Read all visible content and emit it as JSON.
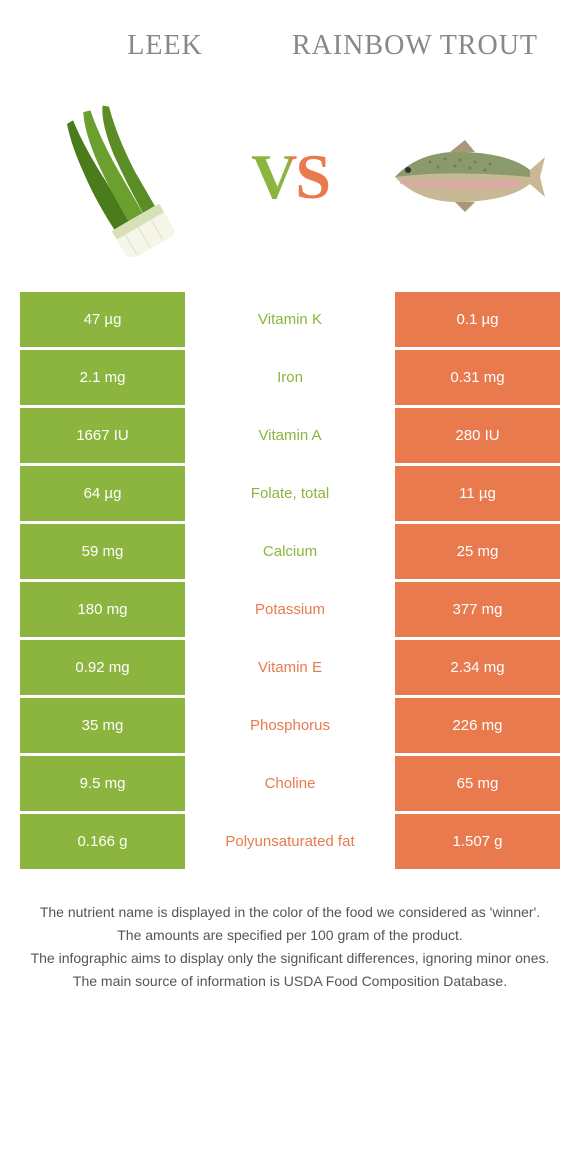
{
  "header": {
    "left_title": "Leek",
    "right_title": "Rainbow trout",
    "vs": "VS"
  },
  "colors": {
    "leek": "#8cb53f",
    "trout": "#e87a4e",
    "title": "#888888",
    "foot": "#555555"
  },
  "rows": [
    {
      "left": "47 µg",
      "label": "Vitamin K",
      "right": "0.1 µg",
      "winner": "leek"
    },
    {
      "left": "2.1 mg",
      "label": "Iron",
      "right": "0.31 mg",
      "winner": "leek"
    },
    {
      "left": "1667 IU",
      "label": "Vitamin A",
      "right": "280 IU",
      "winner": "leek"
    },
    {
      "left": "64 µg",
      "label": "Folate, total",
      "right": "11 µg",
      "winner": "leek"
    },
    {
      "left": "59 mg",
      "label": "Calcium",
      "right": "25 mg",
      "winner": "leek"
    },
    {
      "left": "180 mg",
      "label": "Potassium",
      "right": "377 mg",
      "winner": "trout"
    },
    {
      "left": "0.92 mg",
      "label": "Vitamin E",
      "right": "2.34 mg",
      "winner": "trout"
    },
    {
      "left": "35 mg",
      "label": "Phosphorus",
      "right": "226 mg",
      "winner": "trout"
    },
    {
      "left": "9.5 mg",
      "label": "Choline",
      "right": "65 mg",
      "winner": "trout"
    },
    {
      "left": "0.166 g",
      "label": "Polyunsaturated fat",
      "right": "1.507 g",
      "winner": "trout"
    }
  ],
  "footnotes": [
    "The nutrient name is displayed in the color of the food we considered as 'winner'.",
    "The amounts are specified per 100 gram of the product.",
    "The infographic aims to display only the significant differences, ignoring minor ones.",
    "The main source of information is USDA Food Composition Database."
  ]
}
